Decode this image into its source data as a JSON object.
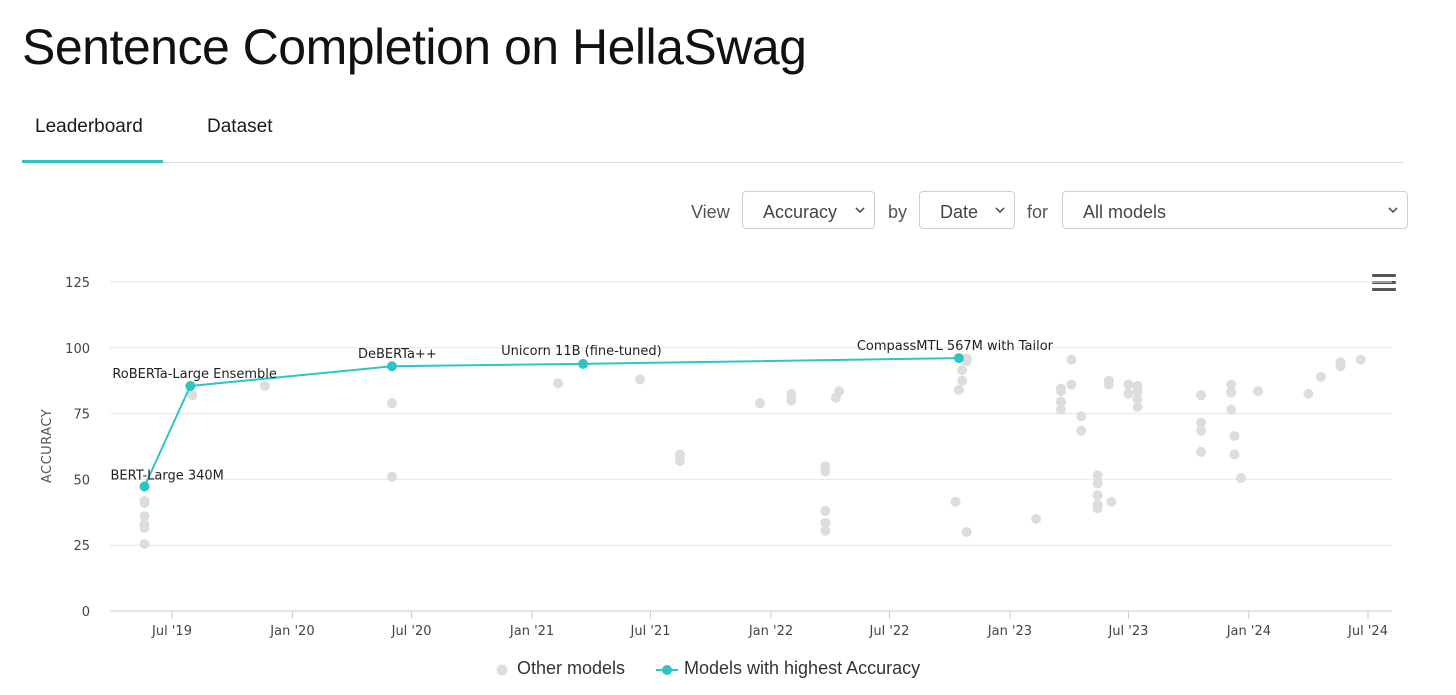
{
  "page": {
    "title": "Sentence Completion on HellaSwag",
    "tabs": [
      {
        "label": "Leaderboard",
        "active": true
      },
      {
        "label": "Dataset",
        "active": false
      }
    ]
  },
  "controls": {
    "view_label": "View",
    "view_value": "Accuracy",
    "by_label": "by",
    "by_value": "Date",
    "for_label": "for",
    "for_value": "All models"
  },
  "colors": {
    "accent": "#2ec4c4",
    "other_points": "#dddddd",
    "grid": "#e6e6e6"
  },
  "legend": {
    "other": "Other models",
    "best": "Models with highest Accuracy"
  },
  "chart_data": {
    "type": "scatter",
    "ylabel": "ACCURACY",
    "ylim": [
      0,
      125
    ],
    "yticks": [
      0,
      25,
      50,
      75,
      100,
      125
    ],
    "xlim": [
      "2019-04-01",
      "2024-07-15"
    ],
    "xticks": [
      {
        "date": "2019-07-01",
        "label": "Jul '19"
      },
      {
        "date": "2020-01-01",
        "label": "Jan '20"
      },
      {
        "date": "2020-07-01",
        "label": "Jul '20"
      },
      {
        "date": "2021-01-01",
        "label": "Jan '21"
      },
      {
        "date": "2021-07-01",
        "label": "Jul '21"
      },
      {
        "date": "2022-01-01",
        "label": "Jan '22"
      },
      {
        "date": "2022-07-01",
        "label": "Jul '22"
      },
      {
        "date": "2023-01-01",
        "label": "Jan '23"
      },
      {
        "date": "2023-07-01",
        "label": "Jul '23"
      },
      {
        "date": "2024-01-01",
        "label": "Jan '24"
      },
      {
        "date": "2024-07-01",
        "label": "Jul '24"
      }
    ],
    "grid": true,
    "legend_position": "bottom",
    "series": [
      {
        "name": "Models with highest Accuracy",
        "points": [
          {
            "x": "2019-05-20",
            "y": 47.3,
            "label": "BERT-Large 340M"
          },
          {
            "x": "2019-07-29",
            "y": 85.5,
            "label": "RoBERTa-Large Ensemble"
          },
          {
            "x": "2020-06-01",
            "y": 93.0,
            "label": "DeBERTa++"
          },
          {
            "x": "2021-03-20",
            "y": 93.9,
            "label": "Unicorn 11B (fine-tuned)"
          },
          {
            "x": "2022-10-15",
            "y": 96.1,
            "label": "CompassMTL 567M with Tailor"
          }
        ]
      },
      {
        "name": "Other models",
        "points": [
          {
            "x": "2019-05-20",
            "y": 25.5
          },
          {
            "x": "2019-05-20",
            "y": 31.5
          },
          {
            "x": "2019-05-20",
            "y": 33.0
          },
          {
            "x": "2019-05-20",
            "y": 36.0
          },
          {
            "x": "2019-05-20",
            "y": 41.0
          },
          {
            "x": "2019-05-20",
            "y": 41.8
          },
          {
            "x": "2019-08-01",
            "y": 82.0
          },
          {
            "x": "2019-11-20",
            "y": 85.5
          },
          {
            "x": "2020-06-01",
            "y": 51.0
          },
          {
            "x": "2020-06-01",
            "y": 79.0
          },
          {
            "x": "2021-02-10",
            "y": 86.5
          },
          {
            "x": "2021-06-15",
            "y": 88.0
          },
          {
            "x": "2021-08-15",
            "y": 57.0
          },
          {
            "x": "2021-08-15",
            "y": 59.5
          },
          {
            "x": "2021-12-15",
            "y": 79.0
          },
          {
            "x": "2022-02-01",
            "y": 80.0
          },
          {
            "x": "2022-02-01",
            "y": 82.5
          },
          {
            "x": "2022-03-25",
            "y": 30.5
          },
          {
            "x": "2022-03-25",
            "y": 33.5
          },
          {
            "x": "2022-03-25",
            "y": 38.0
          },
          {
            "x": "2022-03-25",
            "y": 53.0
          },
          {
            "x": "2022-03-25",
            "y": 55.0
          },
          {
            "x": "2022-04-10",
            "y": 81.0
          },
          {
            "x": "2022-04-15",
            "y": 83.5
          },
          {
            "x": "2022-10-10",
            "y": 41.5
          },
          {
            "x": "2022-10-15",
            "y": 84.0
          },
          {
            "x": "2022-10-20",
            "y": 87.5
          },
          {
            "x": "2022-10-20",
            "y": 91.5
          },
          {
            "x": "2022-10-27",
            "y": 30.0
          },
          {
            "x": "2022-10-27",
            "y": 95.0
          },
          {
            "x": "2022-10-27",
            "y": 96.0
          },
          {
            "x": "2023-02-10",
            "y": 35.0
          },
          {
            "x": "2023-03-20",
            "y": 76.5
          },
          {
            "x": "2023-03-20",
            "y": 79.5
          },
          {
            "x": "2023-03-20",
            "y": 83.5
          },
          {
            "x": "2023-03-20",
            "y": 84.5
          },
          {
            "x": "2023-04-05",
            "y": 86.0
          },
          {
            "x": "2023-04-05",
            "y": 95.5
          },
          {
            "x": "2023-04-20",
            "y": 68.5
          },
          {
            "x": "2023-04-20",
            "y": 74.0
          },
          {
            "x": "2023-05-15",
            "y": 39.0
          },
          {
            "x": "2023-05-15",
            "y": 40.5
          },
          {
            "x": "2023-05-15",
            "y": 44.0
          },
          {
            "x": "2023-05-15",
            "y": 48.5
          },
          {
            "x": "2023-05-15",
            "y": 51.5
          },
          {
            "x": "2023-06-01",
            "y": 86.0
          },
          {
            "x": "2023-06-01",
            "y": 87.5
          },
          {
            "x": "2023-06-05",
            "y": 41.5
          },
          {
            "x": "2023-07-01",
            "y": 82.5
          },
          {
            "x": "2023-07-01",
            "y": 86.0
          },
          {
            "x": "2023-07-15",
            "y": 77.5
          },
          {
            "x": "2023-07-15",
            "y": 80.5
          },
          {
            "x": "2023-07-15",
            "y": 83.5
          },
          {
            "x": "2023-07-15",
            "y": 85.5
          },
          {
            "x": "2023-10-20",
            "y": 60.5
          },
          {
            "x": "2023-10-20",
            "y": 68.5
          },
          {
            "x": "2023-10-20",
            "y": 71.5
          },
          {
            "x": "2023-10-20",
            "y": 82.0
          },
          {
            "x": "2023-12-05",
            "y": 76.5
          },
          {
            "x": "2023-12-05",
            "y": 83.0
          },
          {
            "x": "2023-12-05",
            "y": 86.0
          },
          {
            "x": "2023-12-10",
            "y": 59.5
          },
          {
            "x": "2023-12-10",
            "y": 66.5
          },
          {
            "x": "2023-12-20",
            "y": 50.5
          },
          {
            "x": "2024-01-15",
            "y": 83.5
          },
          {
            "x": "2024-04-01",
            "y": 82.5
          },
          {
            "x": "2024-04-20",
            "y": 89.0
          },
          {
            "x": "2024-05-20",
            "y": 93.0
          },
          {
            "x": "2024-05-20",
            "y": 94.5
          },
          {
            "x": "2024-06-20",
            "y": 95.5
          }
        ]
      }
    ]
  }
}
